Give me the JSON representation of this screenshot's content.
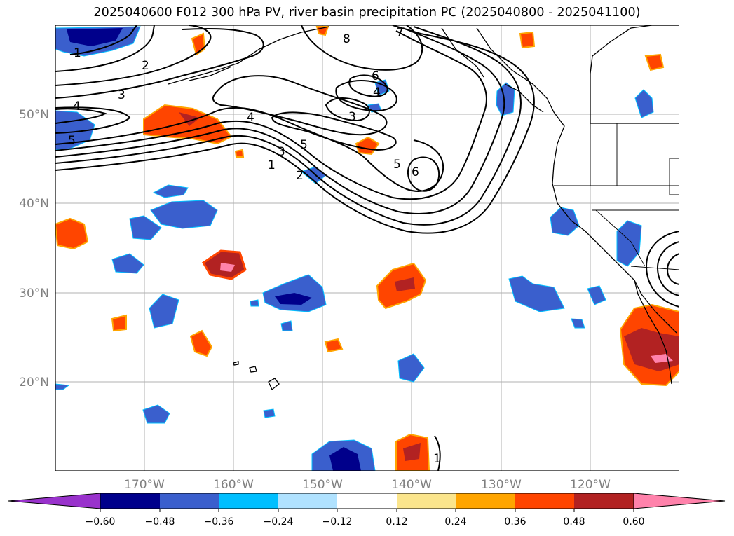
{
  "title": "2025040600 F012 300 hPa PV, river basin precipitation PC (2025040800 - 2025041100)",
  "lat_labels": [
    "50°N",
    "40°N",
    "30°N",
    "20°N"
  ],
  "lon_labels": [
    "170°W",
    "160°W",
    "150°W",
    "140°W",
    "130°W",
    "120°W"
  ],
  "pv_contour_labels": [
    "1",
    "2",
    "3",
    "4",
    "5",
    "8",
    "7",
    "6",
    "4",
    "3",
    "5",
    "6",
    "4",
    "3",
    "5",
    "1",
    "2",
    "1"
  ],
  "colorbar": {
    "tick_labels": [
      "−0.60",
      "−0.48",
      "−0.36",
      "−0.24",
      "−0.12",
      "0.12",
      "0.24",
      "0.36",
      "0.48",
      "0.60"
    ],
    "colors": [
      "#9932cc",
      "#00008b",
      "#3a5fcd",
      "#00bfff",
      "#b0e2ff",
      "#ffffff",
      "#fbe58c",
      "#ffa500",
      "#ff4500",
      "#b22222",
      "#ff82ab"
    ]
  }
}
